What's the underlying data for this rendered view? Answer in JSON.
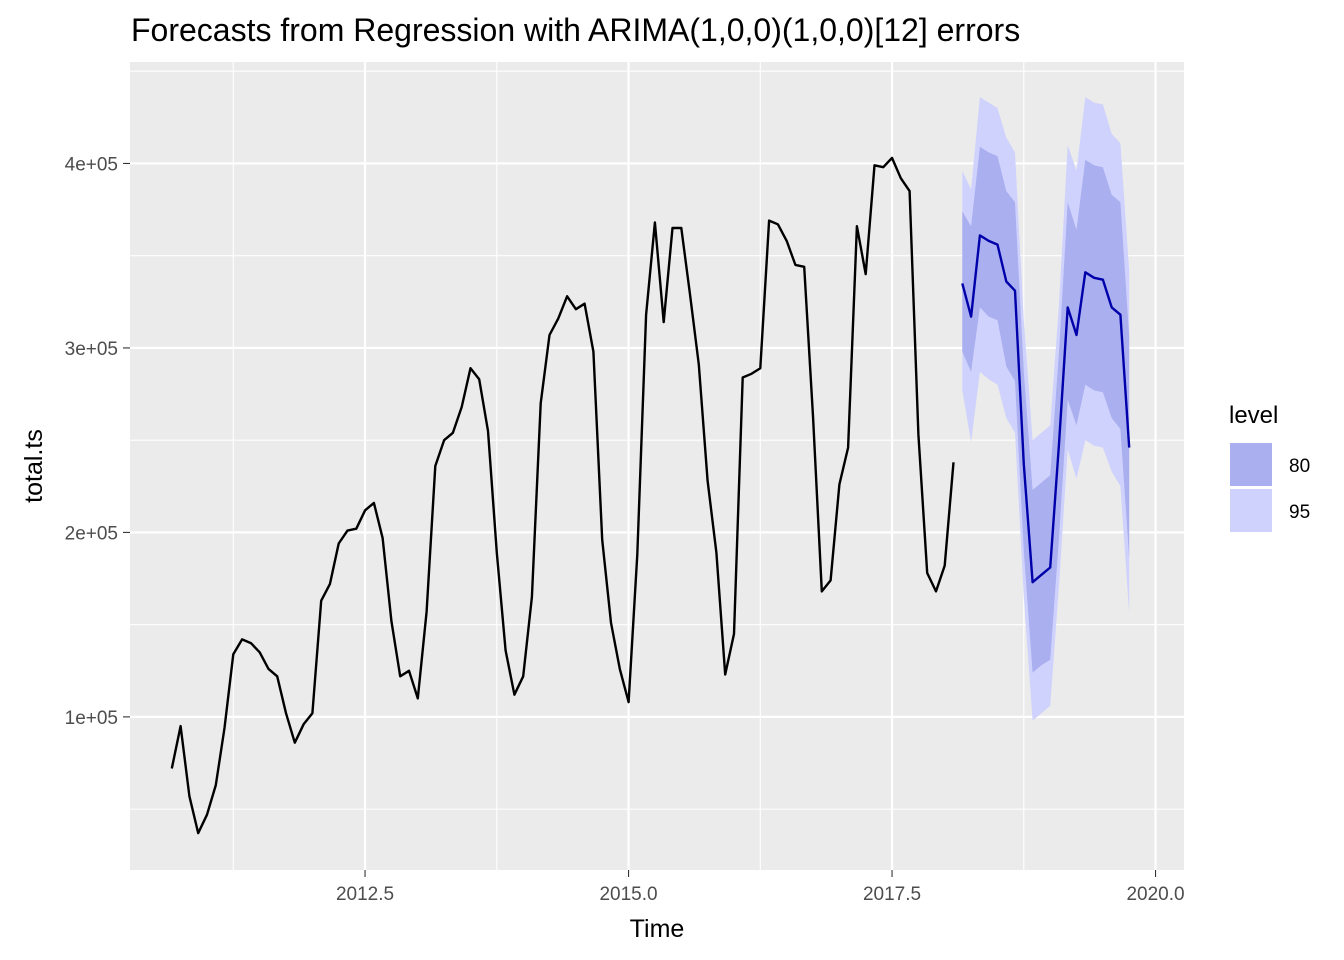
{
  "chart_data": {
    "type": "line",
    "title": "Forecasts from Regression with ARIMA(1,0,0)(1,0,0)[12] errors",
    "xlabel": "Time",
    "ylabel": "total.ts",
    "xlim": [
      2010.27,
      2020.27
    ],
    "ylim": [
      17000,
      455000
    ],
    "x_ticks": [
      2012.5,
      2015.0,
      2017.5,
      2020.0
    ],
    "x_tick_labels": [
      "2012.5",
      "2015.0",
      "2017.5",
      "2020.0"
    ],
    "y_ticks": [
      100000,
      200000,
      300000,
      400000
    ],
    "y_tick_labels": [
      "1e+05",
      "2e+05",
      "3e+05",
      "4e+05"
    ],
    "grid": true,
    "legend": {
      "title": "level",
      "placement": "right",
      "entries": [
        {
          "label": "80",
          "color": "#aaafef"
        },
        {
          "label": "95",
          "color": "#cfd2fc"
        }
      ]
    },
    "colors": {
      "history": "#000000",
      "forecast": "#0000aa",
      "band80": "#aaafef",
      "band95": "#cfd2fc",
      "panel": "#ebebeb",
      "grid": "#ffffff"
    },
    "series": [
      {
        "role": "history",
        "x_start": 2010.667,
        "x_step": 0.08333,
        "values": [
          72000,
          95000,
          57000,
          37000,
          47000,
          63000,
          94000,
          134000,
          142000,
          140000,
          135000,
          126000,
          122000,
          102000,
          86000,
          96000,
          102000,
          163000,
          172000,
          194000,
          201000,
          202000,
          212000,
          216000,
          197000,
          152000,
          122000,
          125000,
          110000,
          157000,
          236000,
          250000,
          254000,
          268000,
          289000,
          283000,
          255000,
          189000,
          136000,
          112000,
          122000,
          165000,
          270000,
          307000,
          316000,
          328000,
          321000,
          324000,
          298000,
          196000,
          151000,
          126000,
          108000,
          188000,
          318000,
          368000,
          314000,
          365000,
          365000,
          329000,
          291000,
          228000,
          189000,
          123000,
          145000,
          284000,
          286000,
          289000,
          369000,
          367000,
          358000,
          345000,
          344000,
          263000,
          168000,
          174000,
          226000,
          246000,
          366000,
          340000,
          399000,
          398000,
          403000,
          392000,
          385000,
          253000,
          178000,
          168000,
          182000,
          238000
        ]
      },
      {
        "role": "forecast",
        "x_start": 2018.167,
        "x_step": 0.08333,
        "values": [
          335000,
          317000,
          361000,
          358000,
          356000,
          336000,
          331000,
          237000,
          173000,
          177000,
          181000,
          248000,
          322000,
          307000,
          341000,
          338000,
          337000,
          322000,
          318000,
          246000
        ],
        "lo80": [
          298000,
          287000,
          322000,
          317000,
          315000,
          290000,
          282000,
          190000,
          124000,
          128000,
          131000,
          197000,
          272000,
          258000,
          280000,
          277000,
          276000,
          262000,
          256000,
          186000
        ],
        "hi80": [
          374000,
          366000,
          409000,
          406000,
          404000,
          385000,
          379000,
          287000,
          223000,
          227000,
          231000,
          298000,
          379000,
          364000,
          402000,
          399000,
          398000,
          383000,
          379000,
          306000
        ],
        "lo95": [
          277000,
          249000,
          287000,
          283000,
          280000,
          262000,
          254000,
          165000,
          98000,
          102000,
          106000,
          171000,
          245000,
          229000,
          250000,
          247000,
          246000,
          233000,
          225000,
          156000
        ],
        "hi95": [
          396000,
          386000,
          436000,
          433000,
          430000,
          414000,
          406000,
          315000,
          250000,
          254000,
          258000,
          324000,
          410000,
          396000,
          436000,
          433000,
          432000,
          416000,
          411000,
          342000
        ]
      }
    ]
  }
}
